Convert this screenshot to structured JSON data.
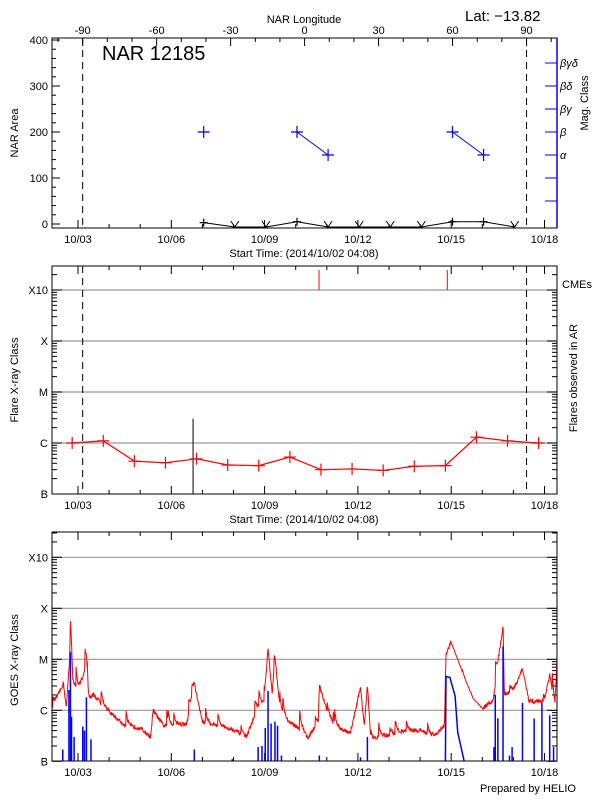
{
  "page": {
    "lat_label": "Lat: −13.82",
    "prepared_by": "Prepared by HELIO"
  },
  "colors": {
    "flare": "#ff0000",
    "mag": "#0000ff",
    "goes_long": "#ff0000",
    "goes_short": "#0000ff",
    "grid": "#999999"
  },
  "chart_data": [
    {
      "type": "line",
      "title": "NAR 12185",
      "xlabel": "Start Time: (2014/10/02 04:08)",
      "x_ticks": [
        "10/03",
        "10/06",
        "10/09",
        "10/12",
        "10/15",
        "10/18"
      ],
      "x_tick_dates": [
        "2014-10-03",
        "2014-10-06",
        "2014-10-09",
        "2014-10-12",
        "2014-10-15",
        "2014-10-18"
      ],
      "xlim": [
        "2014-10-02T04:08",
        "2014-10-18T10:00"
      ],
      "top_axis": {
        "label": "NAR Longitude",
        "ticks": [
          "-90",
          "-60",
          "-30",
          "0",
          "30",
          "60",
          "90"
        ],
        "values": [
          -90,
          -60,
          -30,
          0,
          30,
          60,
          90
        ],
        "dashed_at": [
          -90,
          90
        ]
      },
      "ylabel": "NAR Area",
      "ylim": [
        0,
        400
      ],
      "y_ticks": [
        "0",
        "100",
        "200",
        "300",
        "400"
      ],
      "y2label": "Mag. Class",
      "y2_ticks": [
        "α",
        "β",
        "βγ",
        "βδ",
        "βγδ"
      ],
      "series": [
        {
          "kind": "area",
          "x": [
            "2014-10-07T01:00",
            "2014-10-08T01:00",
            "2014-10-09T01:00",
            "2014-10-10T01:00",
            "2014-10-11T01:00",
            "2014-10-12T01:00",
            "2014-10-13T01:00",
            "2014-10-14T01:00",
            "2014-10-15T01:00",
            "2014-10-16T01:00",
            "2014-10-17T01:00"
          ],
          "values": [
            3,
            0,
            0,
            5,
            0,
            0,
            0,
            0,
            5,
            5,
            0
          ]
        },
        {
          "kind": "mag_class",
          "x": [
            "2014-10-07T01:00",
            "2014-10-10T01:00",
            "2014-10-11T01:00",
            "2014-10-15T01:00",
            "2014-10-16T01:00"
          ],
          "values": [
            "β",
            "β",
            "α",
            "β",
            "α"
          ]
        }
      ]
    },
    {
      "type": "line",
      "xlabel": "Start Time: (2014/10/02 04:08)",
      "x_ticks": [
        "10/03",
        "10/06",
        "10/09",
        "10/12",
        "10/15",
        "10/18"
      ],
      "ylabel": "Flare X-ray Class",
      "y_ticks": [
        "B",
        "C",
        "M",
        "X",
        "X10"
      ],
      "y2label": "Flares observed in AR",
      "cme_label": "CMEs",
      "series": [
        {
          "kind": "flare_class",
          "x": [
            "2014-10-02T19:30",
            "2014-10-03T19:30",
            "2014-10-04T19:30",
            "2014-10-05T19:30",
            "2014-10-06T19:30",
            "2014-10-07T19:30",
            "2014-10-08T19:30",
            "2014-10-09T19:30",
            "2014-10-10T19:30",
            "2014-10-11T19:30",
            "2014-10-12T19:30",
            "2014-10-13T19:30",
            "2014-10-14T19:30",
            "2014-10-15T19:30",
            "2014-10-16T19:30",
            "2014-10-17T19:30"
          ],
          "values": [
            "C1.0",
            "C1.1",
            "B4.4",
            "B4.1",
            "B4.9",
            "B3.7",
            "B3.6",
            "B5.3",
            "B3.0",
            "B3.1",
            "B2.9",
            "B3.5",
            "B3.6",
            "C1.3",
            "C1.1",
            "C1.0"
          ]
        }
      ],
      "flare_marker": {
        "x": "2014-10-06T16:48",
        "value": "C3.0"
      },
      "cmes": [
        "2014-10-10T18:00",
        "2014-10-14T21:00"
      ],
      "dashed_at_longitude": [
        -90,
        90
      ]
    },
    {
      "type": "line",
      "x_ticks": [
        "10/03",
        "10/06",
        "10/09",
        "10/12",
        "10/15",
        "10/18"
      ],
      "ylabel": "GOES X-ray Class",
      "y_ticks": [
        "B",
        "C",
        "M",
        "X",
        "X10"
      ],
      "series": [
        {
          "kind": "goes_long",
          "points": [
            [
              "2014-10-02T04:08",
              "C1.2"
            ],
            [
              "2014-10-02T08:00",
              "C1.8"
            ],
            [
              "2014-10-02T12:45",
              "C3.4"
            ],
            [
              "2014-10-02T15:00",
              "C1.1"
            ],
            [
              "2014-10-02T17:30",
              "M1.0"
            ],
            [
              "2014-10-02T18:10",
              "M6.9"
            ],
            [
              "2014-10-02T20:00",
              "C4.0"
            ],
            [
              "2014-10-03T00:00",
              "C2.5"
            ],
            [
              "2014-10-03T03:40",
              "C4.5"
            ],
            [
              "2014-10-03T06:30",
              "C8.9"
            ],
            [
              "2014-10-03T08:00",
              "C1.4"
            ],
            [
              "2014-10-03T12:00",
              "C2.0"
            ],
            [
              "2014-10-04T00:00",
              "B9.5"
            ],
            [
              "2014-10-04T12:00",
              "B5.0"
            ],
            [
              "2014-10-05T00:00",
              "B4.5"
            ],
            [
              "2014-10-05T08:00",
              "B3.0"
            ],
            [
              "2014-10-05T10:00",
              "C1.0"
            ],
            [
              "2014-10-05T18:00",
              "B5.0"
            ],
            [
              "2014-10-06T12:00",
              "B5.5"
            ],
            [
              "2014-10-06T17:45",
              "C3.1"
            ],
            [
              "2014-10-07T00:00",
              "B6.0"
            ],
            [
              "2014-10-07T12:00",
              "B5.0"
            ],
            [
              "2014-10-08T00:00",
              "B4.2"
            ],
            [
              "2014-10-08T10:00",
              "B3.0"
            ],
            [
              "2014-10-08T18:00",
              "C1.0"
            ],
            [
              "2014-10-09T00:00",
              "C1.5"
            ],
            [
              "2014-10-09T02:40",
              "M1.5"
            ],
            [
              "2014-10-09T06:00",
              "C2.0"
            ],
            [
              "2014-10-09T07:40",
              "M1.3"
            ],
            [
              "2014-10-09T12:00",
              "C1.0"
            ],
            [
              "2014-10-09T18:00",
              "B6.0"
            ],
            [
              "2014-10-10T06:00",
              "B4.0"
            ],
            [
              "2014-10-10T09:20",
              "B2.8"
            ],
            [
              "2014-10-10T17:30",
              "B6.0"
            ],
            [
              "2014-10-10T18:15",
              "C3.1"
            ],
            [
              "2014-10-11T00:00",
              "C1.0"
            ],
            [
              "2014-10-11T06:00",
              "B5.0"
            ],
            [
              "2014-10-11T18:00",
              "B3.5"
            ],
            [
              "2014-10-12T02:00",
              "C2.8"
            ],
            [
              "2014-10-12T05:00",
              "B5.0"
            ],
            [
              "2014-10-12T07:20",
              "C3.0"
            ],
            [
              "2014-10-12T10:00",
              "B2.7"
            ],
            [
              "2014-10-13T00:00",
              "B3.3"
            ],
            [
              "2014-10-13T12:00",
              "B4.0"
            ],
            [
              "2014-10-14T00:00",
              "B4.0"
            ],
            [
              "2014-10-14T11:00",
              "B3.2"
            ],
            [
              "2014-10-14T18:45",
              "B5.0"
            ],
            [
              "2014-10-14T20:00",
              "M1.2"
            ],
            [
              "2014-10-14T23:45",
              "M2.2"
            ],
            [
              "2014-10-15T05:00",
              "M1.0"
            ],
            [
              "2014-10-15T11:00",
              "C3.9"
            ],
            [
              "2014-10-15T17:00",
              "C1.7"
            ],
            [
              "2014-10-16T00:00",
              "C1.1"
            ],
            [
              "2014-10-16T08:00",
              "C1.5"
            ],
            [
              "2014-10-16T09:00",
              "C2.0"
            ],
            [
              "2014-10-16T16:00",
              "M4.4"
            ],
            [
              "2014-10-16T17:00",
              "C2.0"
            ],
            [
              "2014-10-17T00:00",
              "C2.5"
            ],
            [
              "2014-10-17T07:00",
              "C6.6"
            ],
            [
              "2014-10-17T12:00",
              "C1.5"
            ],
            [
              "2014-10-18T00:00",
              "C1.5"
            ],
            [
              "2014-10-18T04:00",
              "C4.9"
            ],
            [
              "2014-10-18T08:00",
              "C1.2"
            ],
            [
              "2014-10-18T10:00",
              "M1.3"
            ]
          ]
        },
        {
          "kind": "goes_short_spikes",
          "points": [
            [
              "2014-10-02T12:15",
              "B1.7"
            ],
            [
              "2014-10-02T17:00",
              "C2.5"
            ],
            [
              "2014-10-02T18:10",
              "M1.4"
            ],
            [
              "2014-10-02T19:00",
              "B7.5"
            ],
            [
              "2014-10-02T21:00",
              "B3.0"
            ],
            [
              "2014-10-03T03:40",
              "B4.8"
            ],
            [
              "2014-10-03T05:00",
              "B4.0"
            ],
            [
              "2014-10-03T06:30",
              "C1.8"
            ],
            [
              "2014-10-03T10:00",
              "B2.7"
            ],
            [
              "2014-10-06T17:45",
              "B1.7"
            ],
            [
              "2014-10-07T23:00",
              "B1.1"
            ],
            [
              "2014-10-08T19:00",
              "B1.9"
            ],
            [
              "2014-10-08T22:00",
              "B2.0"
            ],
            [
              "2014-10-09T00:30",
              "B4.5"
            ],
            [
              "2014-10-09T02:40",
              "C2.4"
            ],
            [
              "2014-10-09T05:00",
              "B5.5"
            ],
            [
              "2014-10-09T08:00",
              "B6.0"
            ],
            [
              "2014-10-09T10:00",
              "B5.0"
            ],
            [
              "2014-10-09T13:00",
              "B1.3"
            ],
            [
              "2014-10-10T18:15",
              "B1.3"
            ],
            [
              "2014-10-12T02:00",
              "B1.2"
            ],
            [
              "2014-10-12T07:20",
              "B3.0"
            ],
            [
              "2014-10-16T09:00",
              "B1.9"
            ],
            [
              "2014-10-16T10:00",
              "C2.0"
            ],
            [
              "2014-10-16T12:00",
              "B7.0"
            ],
            [
              "2014-10-16T16:00",
              "M1.8"
            ],
            [
              "2014-10-16T21:00",
              "B1.3"
            ],
            [
              "2014-10-16T23:00",
              "B1.9"
            ],
            [
              "2014-10-17T07:00",
              "C1.4"
            ],
            [
              "2014-10-17T16:00",
              "B6.9"
            ],
            [
              "2014-10-17T22:00",
              "C1.4"
            ],
            [
              "2014-10-18T04:00",
              "B8.0"
            ],
            [
              "2014-10-18T07:00",
              "B1.9"
            ],
            [
              "2014-10-18T10:00",
              "C2.5"
            ]
          ]
        },
        {
          "kind": "goes_short_decay",
          "points": [
            [
              "2014-10-14T19:30",
              "B1.0"
            ],
            [
              "2014-10-14T20:00",
              "C4.6"
            ],
            [
              "2014-10-14T23:00",
              "C4.4"
            ],
            [
              "2014-10-15T03:00",
              "C1.9"
            ],
            [
              "2014-10-15T05:00",
              "B3.7"
            ],
            [
              "2014-10-15T10:00",
              "B1.0"
            ]
          ]
        }
      ]
    }
  ]
}
